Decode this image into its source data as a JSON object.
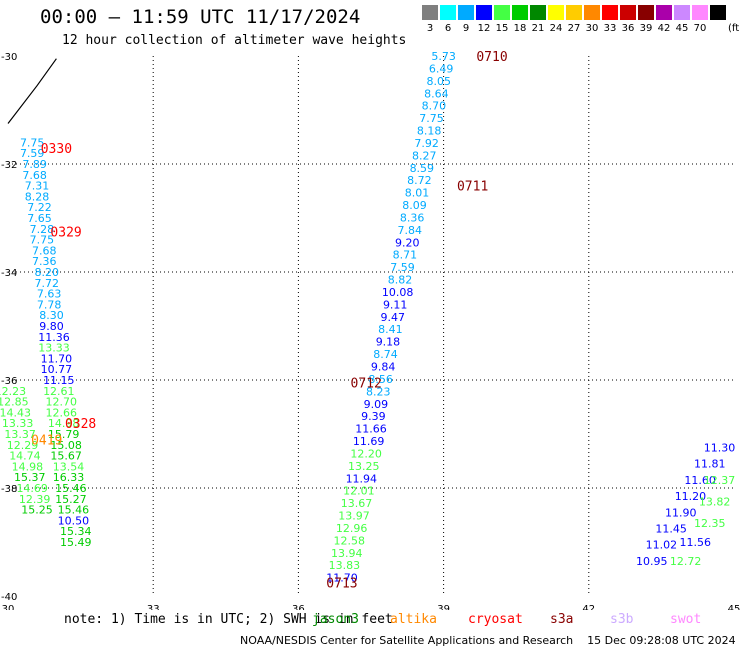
{
  "title": "00:00 – 11:59 UTC 11/17/2024",
  "subtitle": "12 hour collection of altimeter wave heights",
  "legend": {
    "unit": "(ft)",
    "bins": [
      {
        "label": "3",
        "color": "#7f7f7f"
      },
      {
        "label": "6",
        "color": "#00ffff"
      },
      {
        "label": "9",
        "color": "#00aaff"
      },
      {
        "label": "12",
        "color": "#0000ff"
      },
      {
        "label": "15",
        "color": "#44ff44"
      },
      {
        "label": "18",
        "color": "#00cc00"
      },
      {
        "label": "21",
        "color": "#008800"
      },
      {
        "label": "24",
        "color": "#ffff00"
      },
      {
        "label": "27",
        "color": "#ffcc00"
      },
      {
        "label": "30",
        "color": "#ff8800"
      },
      {
        "label": "33",
        "color": "#ff0000"
      },
      {
        "label": "36",
        "color": "#cc0000"
      },
      {
        "label": "39",
        "color": "#880000"
      },
      {
        "label": "42",
        "color": "#aa00aa"
      },
      {
        "label": "45",
        "color": "#cc88ff"
      },
      {
        "label": "70",
        "color": "#ff88ff"
      },
      {
        "label": "",
        "color": "#000000"
      }
    ]
  },
  "note": "note: 1) Time is in UTC; 2) SWH is in feet",
  "satellites": [
    {
      "name": "jason3",
      "color": "#008800"
    },
    {
      "name": "altika",
      "color": "#ff8800"
    },
    {
      "name": "cryosat",
      "color": "#ff0000"
    },
    {
      "name": "s3a",
      "color": "#880000"
    },
    {
      "name": "s3b",
      "color": "#ccaaff"
    },
    {
      "name": "swot",
      "color": "#ff88ff"
    }
  ],
  "credit": "NOAA/NESDIS Center for Satellite Applications and Research    15 Dec 09:28:08 UTC 2024",
  "chart_data": {
    "type": "scatter",
    "xlim": [
      30,
      45
    ],
    "ylim": [
      -40,
      -30
    ],
    "x_ticks": [
      "30",
      "33",
      "36",
      "39",
      "42",
      "45"
    ],
    "y_ticks": [
      "-30",
      "-32",
      "-34",
      "-36",
      "-38",
      "-40"
    ],
    "grid": true,
    "coastline": [
      [
        30.0,
        -31.25
      ],
      [
        30.6,
        -30.55
      ],
      [
        31.0,
        -30.05
      ]
    ],
    "time_labels": [
      {
        "text": "0710",
        "x": 40.0,
        "y": -30.0,
        "color": "#880000"
      },
      {
        "text": "0711",
        "x": 39.6,
        "y": -32.4,
        "color": "#880000"
      },
      {
        "text": "0712",
        "x": 37.4,
        "y": -36.05,
        "color": "#880000"
      },
      {
        "text": "0713",
        "x": 36.9,
        "y": -39.75,
        "color": "#880000"
      },
      {
        "text": "0330",
        "x": 31.0,
        "y": -31.7,
        "color": "#ff0000"
      },
      {
        "text": "0329",
        "x": 31.2,
        "y": -33.25,
        "color": "#ff0000"
      },
      {
        "text": "0328",
        "x": 31.5,
        "y": -36.8,
        "color": "#ff0000"
      },
      {
        "text": "0419",
        "x": 30.8,
        "y": -37.1,
        "color": "#ff8800"
      }
    ],
    "tracks": [
      {
        "name": "track-0710",
        "points": [
          {
            "x": 39.0,
            "y": -30.0,
            "v": "5.73",
            "c": "#00aaff"
          },
          {
            "x": 38.95,
            "y": -30.23,
            "v": "6.49",
            "c": "#00aaff"
          },
          {
            "x": 38.9,
            "y": -30.46,
            "v": "8.05",
            "c": "#00aaff"
          },
          {
            "x": 38.85,
            "y": -30.69,
            "v": "8.64",
            "c": "#00aaff"
          },
          {
            "x": 38.8,
            "y": -30.92,
            "v": "8.70",
            "c": "#00aaff"
          },
          {
            "x": 38.75,
            "y": -31.15,
            "v": "7.75",
            "c": "#00aaff"
          },
          {
            "x": 38.7,
            "y": -31.38,
            "v": "8.18",
            "c": "#00aaff"
          },
          {
            "x": 38.65,
            "y": -31.61,
            "v": "7.92",
            "c": "#00aaff"
          },
          {
            "x": 38.6,
            "y": -31.84,
            "v": "8.27",
            "c": "#00aaff"
          },
          {
            "x": 38.55,
            "y": -32.07,
            "v": "8.59",
            "c": "#00aaff"
          },
          {
            "x": 38.5,
            "y": -32.3,
            "v": "8.72",
            "c": "#00aaff"
          },
          {
            "x": 38.45,
            "y": -32.53,
            "v": "8.01",
            "c": "#00aaff"
          },
          {
            "x": 38.4,
            "y": -32.76,
            "v": "8.09",
            "c": "#00aaff"
          },
          {
            "x": 38.35,
            "y": -32.99,
            "v": "8.36",
            "c": "#00aaff"
          },
          {
            "x": 38.3,
            "y": -33.22,
            "v": "7.84",
            "c": "#00aaff"
          },
          {
            "x": 38.25,
            "y": -33.45,
            "v": "9.20",
            "c": "#0000ff"
          },
          {
            "x": 38.2,
            "y": -33.68,
            "v": "8.71",
            "c": "#00aaff"
          },
          {
            "x": 38.15,
            "y": -33.91,
            "v": "7.59",
            "c": "#00aaff"
          },
          {
            "x": 38.1,
            "y": -34.14,
            "v": "8.82",
            "c": "#00aaff"
          },
          {
            "x": 38.05,
            "y": -34.37,
            "v": "10.08",
            "c": "#0000ff"
          },
          {
            "x": 38.0,
            "y": -34.6,
            "v": "9.11",
            "c": "#0000ff"
          },
          {
            "x": 37.95,
            "y": -34.83,
            "v": "9.47",
            "c": "#0000ff"
          },
          {
            "x": 37.9,
            "y": -35.06,
            "v": "8.41",
            "c": "#00aaff"
          },
          {
            "x": 37.85,
            "y": -35.29,
            "v": "9.18",
            "c": "#0000ff"
          },
          {
            "x": 37.8,
            "y": -35.52,
            "v": "8.74",
            "c": "#00aaff"
          },
          {
            "x": 37.75,
            "y": -35.75,
            "v": "9.84",
            "c": "#0000ff"
          },
          {
            "x": 37.7,
            "y": -35.98,
            "v": "8.56",
            "c": "#00aaff"
          },
          {
            "x": 37.65,
            "y": -36.21,
            "v": "8.23",
            "c": "#00aaff"
          },
          {
            "x": 37.6,
            "y": -36.44,
            "v": "9.09",
            "c": "#0000ff"
          },
          {
            "x": 37.55,
            "y": -36.67,
            "v": "9.39",
            "c": "#0000ff"
          },
          {
            "x": 37.5,
            "y": -36.9,
            "v": "11.66",
            "c": "#0000ff"
          },
          {
            "x": 37.45,
            "y": -37.13,
            "v": "11.69",
            "c": "#0000ff"
          },
          {
            "x": 37.4,
            "y": -37.36,
            "v": "12.20",
            "c": "#44ff44"
          },
          {
            "x": 37.35,
            "y": -37.59,
            "v": "13.25",
            "c": "#44ff44"
          },
          {
            "x": 37.3,
            "y": -37.82,
            "v": "11.94",
            "c": "#0000ff"
          },
          {
            "x": 37.25,
            "y": -38.05,
            "v": "12.01",
            "c": "#44ff44"
          },
          {
            "x": 37.2,
            "y": -38.28,
            "v": "13.67",
            "c": "#44ff44"
          },
          {
            "x": 37.15,
            "y": -38.51,
            "v": "13.97",
            "c": "#44ff44"
          },
          {
            "x": 37.1,
            "y": -38.74,
            "v": "12.96",
            "c": "#44ff44"
          },
          {
            "x": 37.05,
            "y": -38.97,
            "v": "12.58",
            "c": "#44ff44"
          },
          {
            "x": 37.0,
            "y": -39.2,
            "v": "13.94",
            "c": "#44ff44"
          },
          {
            "x": 36.95,
            "y": -39.43,
            "v": "13.83",
            "c": "#44ff44"
          },
          {
            "x": 36.9,
            "y": -39.66,
            "v": "11.70",
            "c": "#0000ff"
          }
        ]
      },
      {
        "name": "track-0330",
        "points": [
          {
            "x": 30.5,
            "y": -31.6,
            "v": "7.75",
            "c": "#00aaff"
          },
          {
            "x": 30.5,
            "y": -31.8,
            "v": "7.59",
            "c": "#00aaff"
          },
          {
            "x": 30.55,
            "y": -32.0,
            "v": "7.89",
            "c": "#00aaff"
          },
          {
            "x": 30.55,
            "y": -32.2,
            "v": "7.68",
            "c": "#00aaff"
          },
          {
            "x": 30.6,
            "y": -32.4,
            "v": "7.31",
            "c": "#00aaff"
          },
          {
            "x": 30.6,
            "y": -32.6,
            "v": "8.28",
            "c": "#00aaff"
          },
          {
            "x": 30.65,
            "y": -32.8,
            "v": "7.22",
            "c": "#00aaff"
          },
          {
            "x": 30.65,
            "y": -33.0,
            "v": "7.65",
            "c": "#00aaff"
          },
          {
            "x": 30.7,
            "y": -33.2,
            "v": "7.28",
            "c": "#00aaff"
          },
          {
            "x": 30.7,
            "y": -33.4,
            "v": "7.75",
            "c": "#00aaff"
          },
          {
            "x": 30.75,
            "y": -33.6,
            "v": "7.68",
            "c": "#00aaff"
          },
          {
            "x": 30.75,
            "y": -33.8,
            "v": "7.36",
            "c": "#00aaff"
          },
          {
            "x": 30.8,
            "y": -34.0,
            "v": "8.20",
            "c": "#00aaff"
          },
          {
            "x": 30.8,
            "y": -34.2,
            "v": "7.72",
            "c": "#00aaff"
          },
          {
            "x": 30.85,
            "y": -34.4,
            "v": "7.63",
            "c": "#00aaff"
          },
          {
            "x": 30.85,
            "y": -34.6,
            "v": "7.78",
            "c": "#00aaff"
          },
          {
            "x": 30.9,
            "y": -34.8,
            "v": "8.30",
            "c": "#00aaff"
          },
          {
            "x": 30.9,
            "y": -35.0,
            "v": "9.80",
            "c": "#0000ff"
          },
          {
            "x": 30.95,
            "y": -35.2,
            "v": "11.36",
            "c": "#0000ff"
          },
          {
            "x": 30.95,
            "y": -35.4,
            "v": "13.33",
            "c": "#44ff44"
          },
          {
            "x": 31.0,
            "y": -35.6,
            "v": "11.70",
            "c": "#0000ff"
          },
          {
            "x": 31.0,
            "y": -35.8,
            "v": "10.77",
            "c": "#0000ff"
          },
          {
            "x": 31.05,
            "y": -36.0,
            "v": "11.15",
            "c": "#0000ff"
          },
          {
            "x": 31.05,
            "y": -36.2,
            "v": "12.61",
            "c": "#44ff44"
          },
          {
            "x": 31.1,
            "y": -36.4,
            "v": "12.70",
            "c": "#44ff44"
          },
          {
            "x": 31.1,
            "y": -36.6,
            "v": "12.66",
            "c": "#44ff44"
          },
          {
            "x": 31.15,
            "y": -36.8,
            "v": "14.98",
            "c": "#44ff44"
          },
          {
            "x": 31.15,
            "y": -37.0,
            "v": "15.79",
            "c": "#00cc00"
          },
          {
            "x": 31.2,
            "y": -37.2,
            "v": "15.08",
            "c": "#00cc00"
          },
          {
            "x": 31.2,
            "y": -37.4,
            "v": "15.67",
            "c": "#00cc00"
          },
          {
            "x": 31.25,
            "y": -37.6,
            "v": "13.54",
            "c": "#44ff44"
          },
          {
            "x": 31.25,
            "y": -37.8,
            "v": "16.33",
            "c": "#00cc00"
          },
          {
            "x": 31.3,
            "y": -38.0,
            "v": "15.46",
            "c": "#00cc00"
          },
          {
            "x": 31.3,
            "y": -38.2,
            "v": "15.27",
            "c": "#00cc00"
          },
          {
            "x": 31.35,
            "y": -38.4,
            "v": "15.46",
            "c": "#00cc00"
          },
          {
            "x": 31.35,
            "y": -38.6,
            "v": "10.50",
            "c": "#0000ff"
          },
          {
            "x": 31.4,
            "y": -38.8,
            "v": "15.34",
            "c": "#00cc00"
          },
          {
            "x": 31.4,
            "y": -39.0,
            "v": "15.49",
            "c": "#00cc00"
          }
        ]
      },
      {
        "name": "track-left-edge",
        "points": [
          {
            "x": 30.05,
            "y": -36.2,
            "v": "12.23",
            "c": "#44ff44"
          },
          {
            "x": 30.1,
            "y": -36.4,
            "v": "12.85",
            "c": "#44ff44"
          },
          {
            "x": 30.15,
            "y": -36.6,
            "v": "14.43",
            "c": "#44ff44"
          },
          {
            "x": 30.2,
            "y": -36.8,
            "v": "13.33",
            "c": "#44ff44"
          },
          {
            "x": 30.25,
            "y": -37.0,
            "v": "13.37",
            "c": "#44ff44"
          },
          {
            "x": 30.3,
            "y": -37.2,
            "v": "12.29",
            "c": "#44ff44"
          },
          {
            "x": 30.35,
            "y": -37.4,
            "v": "14.74",
            "c": "#44ff44"
          },
          {
            "x": 30.4,
            "y": -37.6,
            "v": "14.98",
            "c": "#44ff44"
          },
          {
            "x": 30.45,
            "y": -37.8,
            "v": "15.37",
            "c": "#00cc00"
          },
          {
            "x": 30.5,
            "y": -38.0,
            "v": "14.69",
            "c": "#44ff44"
          },
          {
            "x": 30.55,
            "y": -38.2,
            "v": "12.39",
            "c": "#44ff44"
          },
          {
            "x": 30.6,
            "y": -38.4,
            "v": "15.25",
            "c": "#00cc00"
          }
        ]
      },
      {
        "name": "track-right-edge",
        "points": [
          {
            "x": 43.3,
            "y": -39.35,
            "v": "10.95",
            "c": "#0000ff"
          },
          {
            "x": 43.5,
            "y": -39.05,
            "v": "11.02",
            "c": "#0000ff"
          },
          {
            "x": 43.7,
            "y": -38.75,
            "v": "11.45",
            "c": "#0000ff"
          },
          {
            "x": 43.9,
            "y": -38.45,
            "v": "11.90",
            "c": "#0000ff"
          },
          {
            "x": 44.1,
            "y": -38.15,
            "v": "11.20",
            "c": "#0000ff"
          },
          {
            "x": 44.3,
            "y": -37.85,
            "v": "11.60",
            "c": "#0000ff"
          },
          {
            "x": 44.5,
            "y": -37.55,
            "v": "11.81",
            "c": "#0000ff"
          },
          {
            "x": 44.7,
            "y": -37.25,
            "v": "11.30",
            "c": "#0000ff"
          },
          {
            "x": 44.2,
            "y": -39.0,
            "v": "11.56",
            "c": "#0000ff"
          },
          {
            "x": 44.5,
            "y": -38.65,
            "v": "12.35",
            "c": "#44ff44"
          },
          {
            "x": 44.6,
            "y": -38.25,
            "v": "13.82",
            "c": "#44ff44"
          },
          {
            "x": 44.7,
            "y": -37.85,
            "v": "12.37",
            "c": "#44ff44"
          },
          {
            "x": 44.0,
            "y": -39.35,
            "v": "12.72",
            "c": "#44ff44"
          }
        ]
      }
    ]
  }
}
